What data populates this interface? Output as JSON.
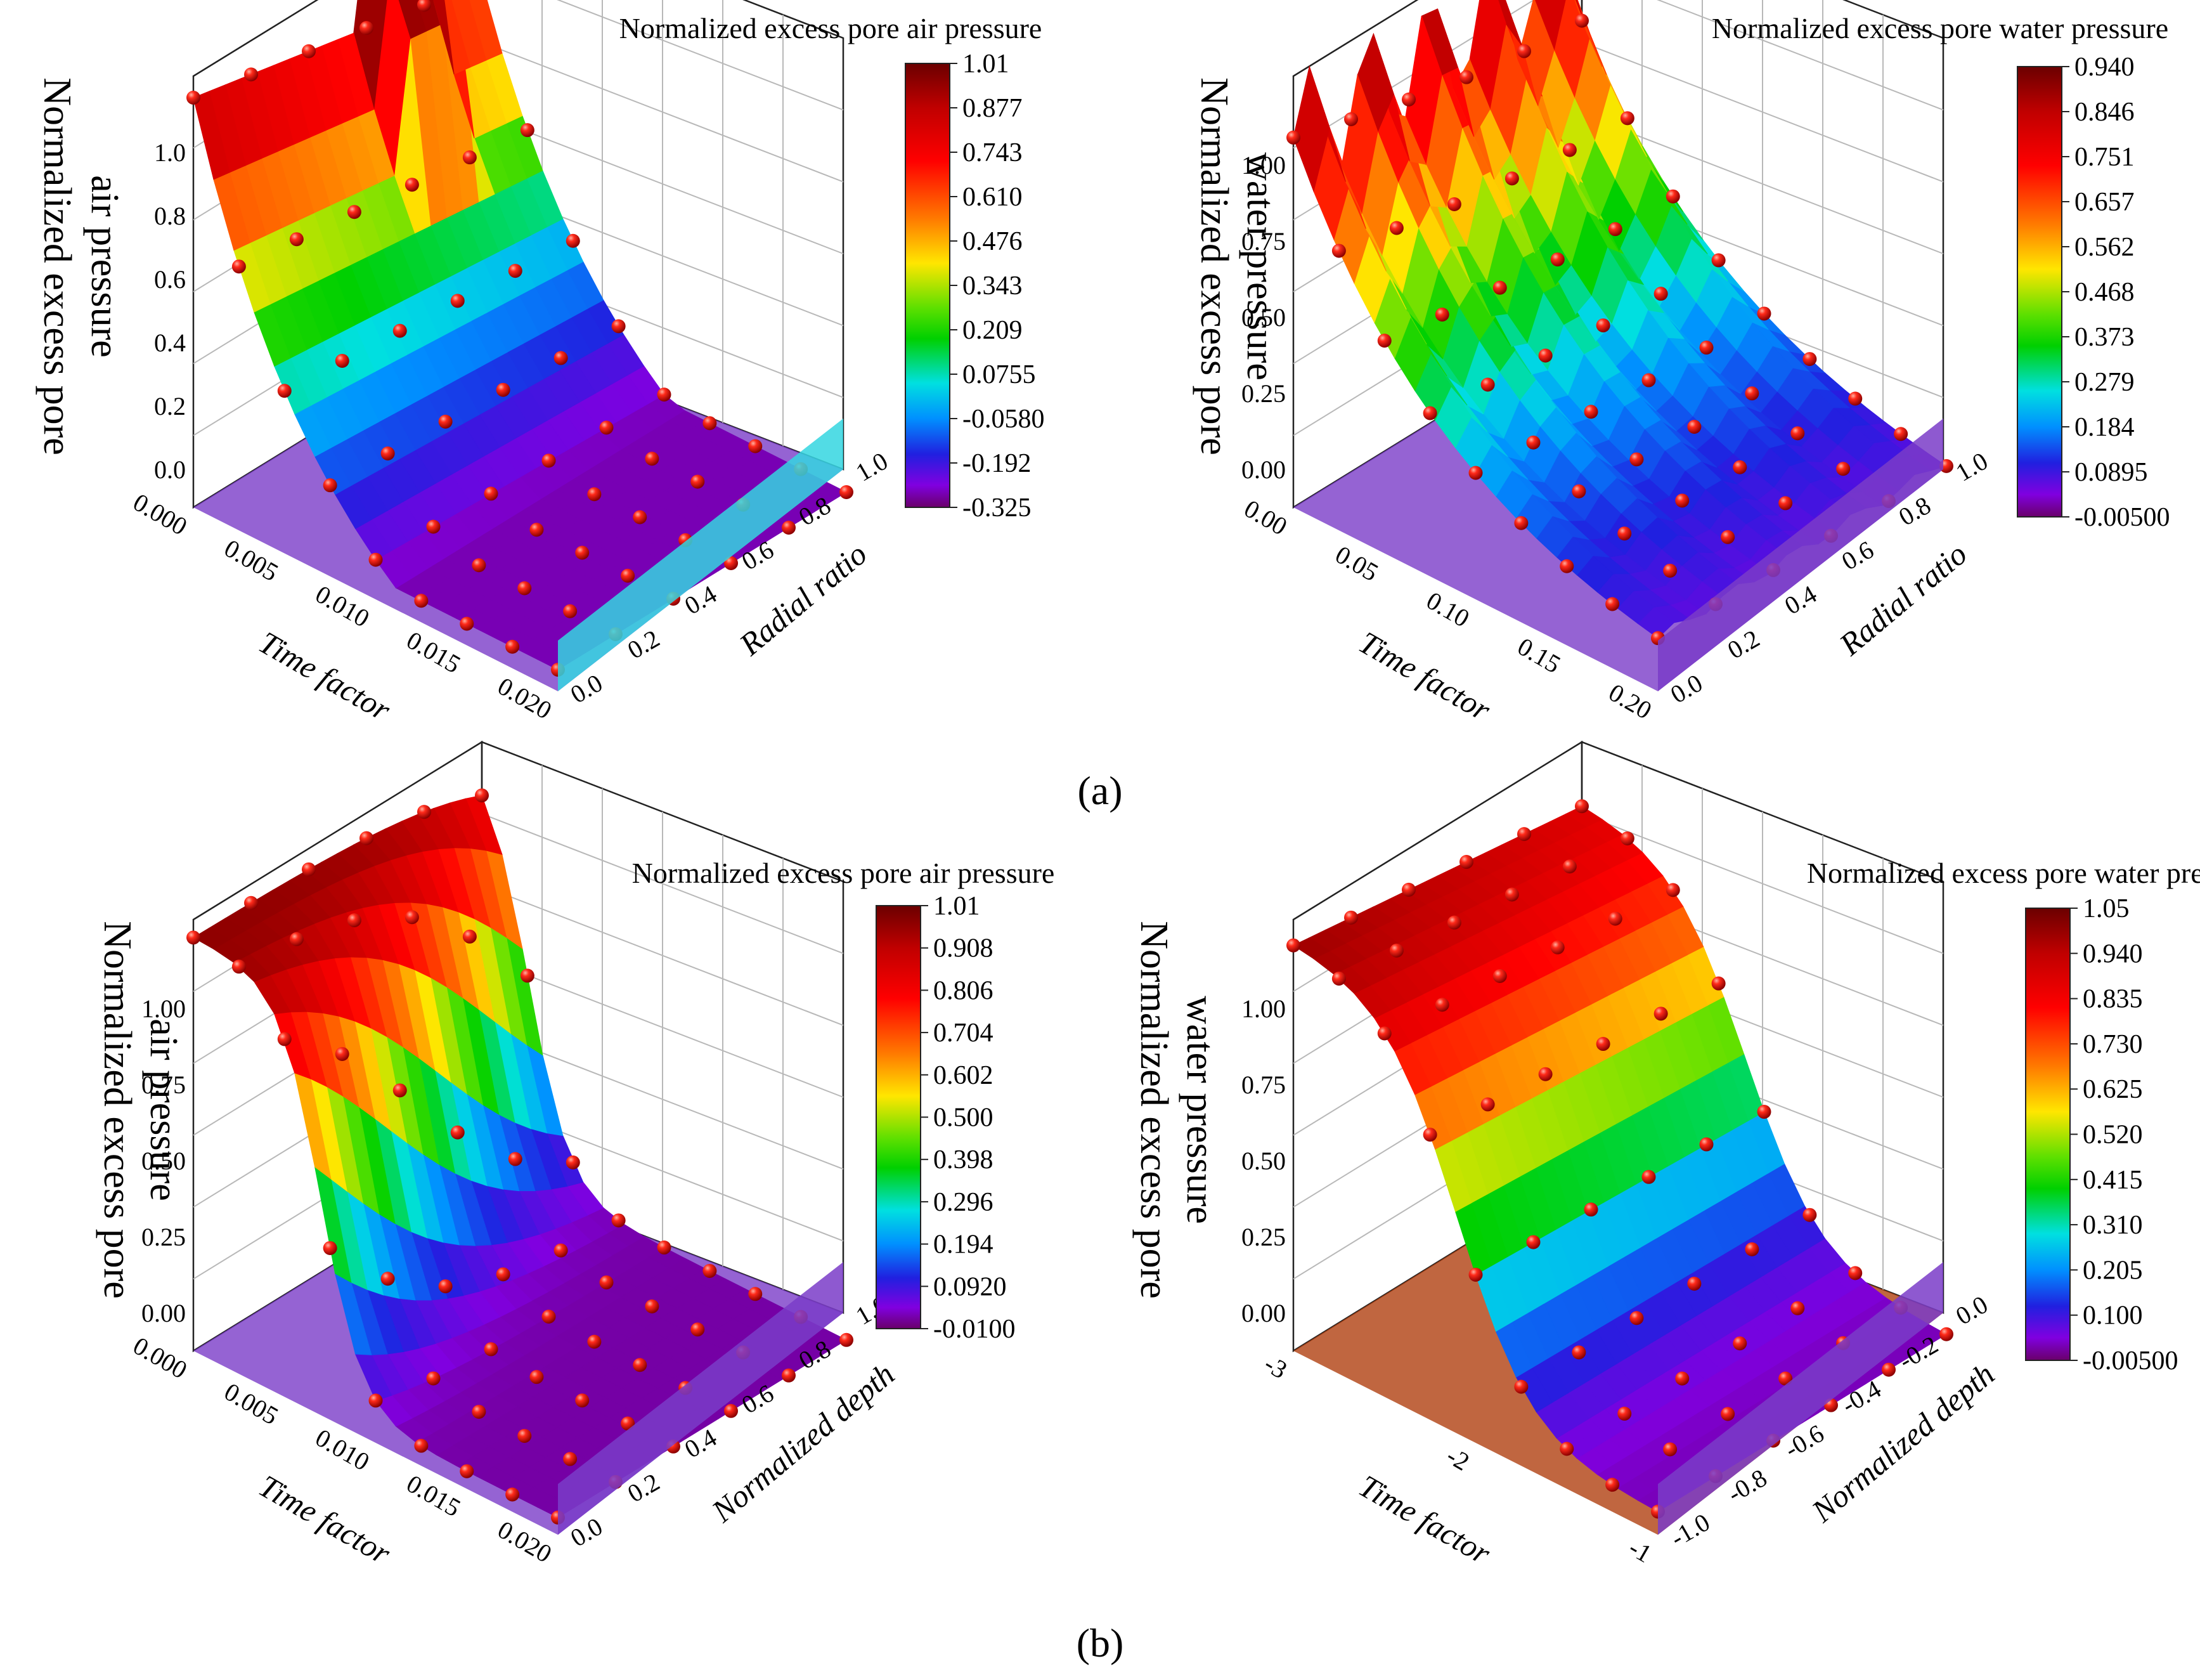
{
  "figure": {
    "panel_labels": [
      "(a)",
      "(b)"
    ]
  },
  "chart_data": [
    {
      "type": "surface3d",
      "title": "Normalized excess pore air pressure",
      "zlabel_lines": [
        "Normalized excess pore",
        "air pressure"
      ],
      "x_title": "Time factor",
      "y_title": "Radial ratio",
      "x_ticks": [
        "0.000",
        "0.005",
        "0.010",
        "0.015",
        "0.020"
      ],
      "y_ticks": [
        "0.0",
        "0.2",
        "0.4",
        "0.6",
        "0.8",
        "1.0"
      ],
      "z_ticks": [
        "0.0",
        "0.2",
        "0.4",
        "0.6",
        "0.8",
        "1.0"
      ],
      "zlim": [
        -0.1,
        1.1
      ],
      "colorbar_ticks": [
        "1.01",
        "0.877",
        "0.743",
        "0.610",
        "0.476",
        "0.343",
        "0.209",
        "0.0755",
        "-0.0580",
        "-0.192",
        "-0.325"
      ]
    },
    {
      "type": "surface3d",
      "title": "Normalized excess pore water pressure",
      "zlabel_lines": [
        "Normalized excess pore",
        "water pressure"
      ],
      "x_title": "Time factor",
      "y_title": "Radial ratio",
      "x_ticks": [
        "0.00",
        "0.05",
        "0.10",
        "0.15",
        "0.20"
      ],
      "y_ticks": [
        "0.0",
        "0.2",
        "0.4",
        "0.6",
        "0.8",
        "1.0"
      ],
      "z_ticks": [
        "0.00",
        "0.25",
        "0.50",
        "0.75",
        "1.00"
      ],
      "zlim": [
        -0.1,
        1.2
      ],
      "colorbar_ticks": [
        "0.940",
        "0.846",
        "0.751",
        "0.657",
        "0.562",
        "0.468",
        "0.373",
        "0.279",
        "0.184",
        "0.0895",
        "-0.00500"
      ]
    },
    {
      "type": "surface3d",
      "title": "Normalized excess pore air pressure",
      "zlabel_lines": [
        "Normalized excess pore",
        "air pressure"
      ],
      "x_title": "Time factor",
      "y_title": "Normalized depth",
      "x_ticks": [
        "0.000",
        "0.005",
        "0.010",
        "0.015",
        "0.020"
      ],
      "y_ticks": [
        "0.0",
        "0.2",
        "0.4",
        "0.6",
        "0.8",
        "1.0"
      ],
      "z_ticks": [
        "0.00",
        "0.25",
        "0.50",
        "0.75",
        "1.00"
      ],
      "zlim": [
        -0.1,
        1.1
      ],
      "colorbar_ticks": [
        "1.01",
        "0.908",
        "0.806",
        "0.704",
        "0.602",
        "0.500",
        "0.398",
        "0.296",
        "0.194",
        "0.0920",
        "-0.0100"
      ]
    },
    {
      "type": "surface3d",
      "title": "Normalized excess pore water pressure",
      "zlabel_lines": [
        "Normalized excess pore",
        "water pressure"
      ],
      "x_title": "Time factor",
      "y_title": "Normalized depth",
      "x_ticks": [
        "-3",
        "-2",
        "-1"
      ],
      "y_ticks": [
        "-1.0",
        "-0.8",
        "-0.6",
        "-0.4",
        "-0.2",
        "0.0"
      ],
      "z_ticks": [
        "0.00",
        "0.25",
        "0.50",
        "0.75",
        "1.00"
      ],
      "zlim": [
        -0.1,
        1.2
      ],
      "colorbar_ticks": [
        "1.05",
        "0.940",
        "0.835",
        "0.730",
        "0.625",
        "0.520",
        "0.415",
        "0.310",
        "0.205",
        "0.100",
        "-0.00500"
      ]
    }
  ]
}
